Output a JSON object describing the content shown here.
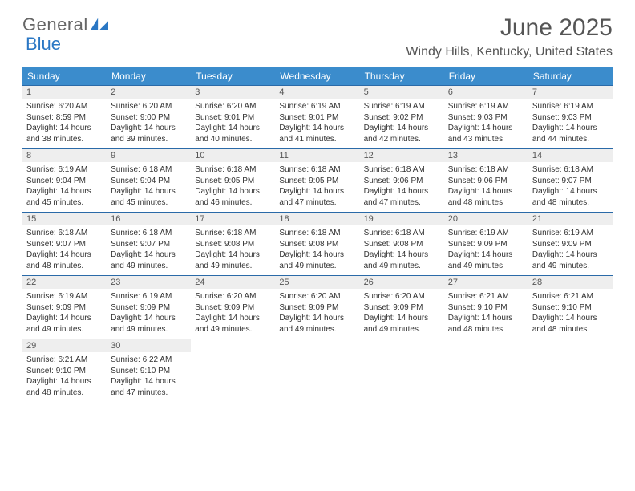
{
  "brand": {
    "part1": "General",
    "part2": "Blue"
  },
  "title": "June 2025",
  "location": "Windy Hills, Kentucky, United States",
  "colors": {
    "header_bg": "#3b8ccc",
    "row_border": "#2a6aa8",
    "daynum_bg": "#eeeeee",
    "text": "#333333",
    "logo_gray": "#666666",
    "logo_blue": "#2a77c4"
  },
  "daysOfWeek": [
    "Sunday",
    "Monday",
    "Tuesday",
    "Wednesday",
    "Thursday",
    "Friday",
    "Saturday"
  ],
  "weeks": [
    [
      {
        "n": "1",
        "sunrise": "6:20 AM",
        "sunset": "8:59 PM",
        "dl": "14 hours and 38 minutes."
      },
      {
        "n": "2",
        "sunrise": "6:20 AM",
        "sunset": "9:00 PM",
        "dl": "14 hours and 39 minutes."
      },
      {
        "n": "3",
        "sunrise": "6:20 AM",
        "sunset": "9:01 PM",
        "dl": "14 hours and 40 minutes."
      },
      {
        "n": "4",
        "sunrise": "6:19 AM",
        "sunset": "9:01 PM",
        "dl": "14 hours and 41 minutes."
      },
      {
        "n": "5",
        "sunrise": "6:19 AM",
        "sunset": "9:02 PM",
        "dl": "14 hours and 42 minutes."
      },
      {
        "n": "6",
        "sunrise": "6:19 AM",
        "sunset": "9:03 PM",
        "dl": "14 hours and 43 minutes."
      },
      {
        "n": "7",
        "sunrise": "6:19 AM",
        "sunset": "9:03 PM",
        "dl": "14 hours and 44 minutes."
      }
    ],
    [
      {
        "n": "8",
        "sunrise": "6:19 AM",
        "sunset": "9:04 PM",
        "dl": "14 hours and 45 minutes."
      },
      {
        "n": "9",
        "sunrise": "6:18 AM",
        "sunset": "9:04 PM",
        "dl": "14 hours and 45 minutes."
      },
      {
        "n": "10",
        "sunrise": "6:18 AM",
        "sunset": "9:05 PM",
        "dl": "14 hours and 46 minutes."
      },
      {
        "n": "11",
        "sunrise": "6:18 AM",
        "sunset": "9:05 PM",
        "dl": "14 hours and 47 minutes."
      },
      {
        "n": "12",
        "sunrise": "6:18 AM",
        "sunset": "9:06 PM",
        "dl": "14 hours and 47 minutes."
      },
      {
        "n": "13",
        "sunrise": "6:18 AM",
        "sunset": "9:06 PM",
        "dl": "14 hours and 48 minutes."
      },
      {
        "n": "14",
        "sunrise": "6:18 AM",
        "sunset": "9:07 PM",
        "dl": "14 hours and 48 minutes."
      }
    ],
    [
      {
        "n": "15",
        "sunrise": "6:18 AM",
        "sunset": "9:07 PM",
        "dl": "14 hours and 48 minutes."
      },
      {
        "n": "16",
        "sunrise": "6:18 AM",
        "sunset": "9:07 PM",
        "dl": "14 hours and 49 minutes."
      },
      {
        "n": "17",
        "sunrise": "6:18 AM",
        "sunset": "9:08 PM",
        "dl": "14 hours and 49 minutes."
      },
      {
        "n": "18",
        "sunrise": "6:18 AM",
        "sunset": "9:08 PM",
        "dl": "14 hours and 49 minutes."
      },
      {
        "n": "19",
        "sunrise": "6:18 AM",
        "sunset": "9:08 PM",
        "dl": "14 hours and 49 minutes."
      },
      {
        "n": "20",
        "sunrise": "6:19 AM",
        "sunset": "9:09 PM",
        "dl": "14 hours and 49 minutes."
      },
      {
        "n": "21",
        "sunrise": "6:19 AM",
        "sunset": "9:09 PM",
        "dl": "14 hours and 49 minutes."
      }
    ],
    [
      {
        "n": "22",
        "sunrise": "6:19 AM",
        "sunset": "9:09 PM",
        "dl": "14 hours and 49 minutes."
      },
      {
        "n": "23",
        "sunrise": "6:19 AM",
        "sunset": "9:09 PM",
        "dl": "14 hours and 49 minutes."
      },
      {
        "n": "24",
        "sunrise": "6:20 AM",
        "sunset": "9:09 PM",
        "dl": "14 hours and 49 minutes."
      },
      {
        "n": "25",
        "sunrise": "6:20 AM",
        "sunset": "9:09 PM",
        "dl": "14 hours and 49 minutes."
      },
      {
        "n": "26",
        "sunrise": "6:20 AM",
        "sunset": "9:09 PM",
        "dl": "14 hours and 49 minutes."
      },
      {
        "n": "27",
        "sunrise": "6:21 AM",
        "sunset": "9:10 PM",
        "dl": "14 hours and 48 minutes."
      },
      {
        "n": "28",
        "sunrise": "6:21 AM",
        "sunset": "9:10 PM",
        "dl": "14 hours and 48 minutes."
      }
    ],
    [
      {
        "n": "29",
        "sunrise": "6:21 AM",
        "sunset": "9:10 PM",
        "dl": "14 hours and 48 minutes."
      },
      {
        "n": "30",
        "sunrise": "6:22 AM",
        "sunset": "9:10 PM",
        "dl": "14 hours and 47 minutes."
      },
      null,
      null,
      null,
      null,
      null
    ]
  ],
  "labels": {
    "sunrise": "Sunrise:",
    "sunset": "Sunset:",
    "daylight": "Daylight:"
  }
}
